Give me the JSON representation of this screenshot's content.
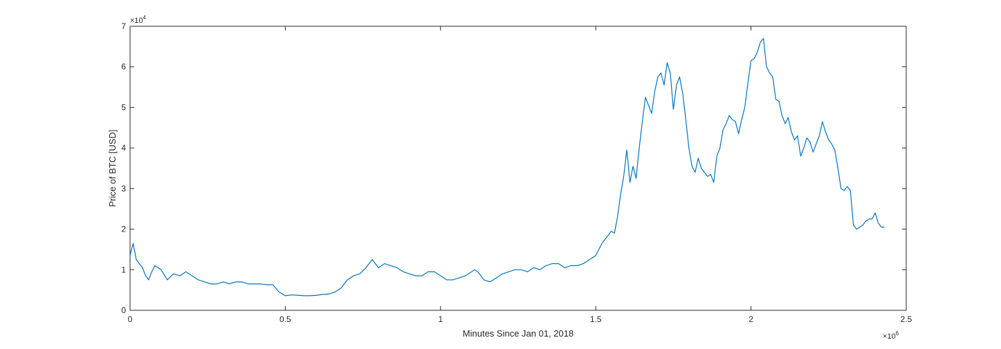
{
  "chart_data": {
    "type": "line",
    "title": "",
    "xlabel": "Minutes Since Jan 01, 2018",
    "ylabel": "Price of BTC [USD]",
    "x_exponent_label": "×10",
    "x_exponent_power": "6",
    "y_exponent_label": "×10",
    "y_exponent_power": "4",
    "xlim": [
      0,
      2500000
    ],
    "ylim": [
      0,
      70000
    ],
    "x_ticks": [
      0,
      500000,
      1000000,
      1500000,
      2000000,
      2500000
    ],
    "x_tick_labels": [
      "0",
      "0.5",
      "1",
      "1.5",
      "2",
      "2.5"
    ],
    "y_ticks": [
      0,
      10000,
      20000,
      30000,
      40000,
      50000,
      60000,
      70000
    ],
    "y_tick_labels": [
      "0",
      "1",
      "2",
      "3",
      "4",
      "5",
      "6",
      "7"
    ],
    "grid": false,
    "line_color": "#0072bd",
    "series": [
      {
        "x": [
          0,
          10000,
          20000,
          30000,
          40000,
          50000,
          60000,
          70000,
          80000,
          100000,
          120000,
          140000,
          160000,
          180000,
          200000,
          220000,
          240000,
          260000,
          280000,
          300000,
          320000,
          340000,
          360000,
          380000,
          400000,
          420000,
          440000,
          460000,
          480000,
          500000,
          520000,
          540000,
          560000,
          580000,
          600000,
          620000,
          640000,
          660000,
          680000,
          700000,
          720000,
          740000,
          760000,
          780000,
          800000,
          820000,
          840000,
          860000,
          880000,
          900000,
          920000,
          940000,
          960000,
          980000,
          1000000,
          1020000,
          1040000,
          1060000,
          1080000,
          1100000,
          1110000,
          1120000,
          1140000,
          1160000,
          1180000,
          1200000,
          1220000,
          1240000,
          1260000,
          1280000,
          1300000,
          1320000,
          1340000,
          1360000,
          1380000,
          1400000,
          1420000,
          1440000,
          1460000,
          1480000,
          1500000,
          1520000,
          1540000,
          1550000,
          1560000,
          1570000,
          1580000,
          1590000,
          1600000,
          1610000,
          1620000,
          1630000,
          1640000,
          1650000,
          1660000,
          1670000,
          1680000,
          1690000,
          1700000,
          1710000,
          1720000,
          1730000,
          1740000,
          1750000,
          1760000,
          1770000,
          1780000,
          1790000,
          1800000,
          1810000,
          1820000,
          1830000,
          1840000,
          1850000,
          1860000,
          1870000,
          1880000,
          1890000,
          1900000,
          1910000,
          1920000,
          1930000,
          1940000,
          1950000,
          1960000,
          1970000,
          1980000,
          1990000,
          2000000,
          2010000,
          2020000,
          2030000,
          2040000,
          2050000,
          2060000,
          2070000,
          2080000,
          2090000,
          2100000,
          2110000,
          2120000,
          2130000,
          2140000,
          2150000,
          2160000,
          2170000,
          2180000,
          2190000,
          2200000,
          2210000,
          2220000,
          2230000,
          2240000,
          2250000,
          2260000,
          2270000,
          2280000,
          2290000,
          2300000,
          2310000,
          2320000,
          2330000,
          2340000,
          2350000,
          2360000,
          2370000,
          2380000,
          2390000,
          2400000,
          2410000,
          2420000,
          2430000
        ],
        "y": [
          13500,
          16500,
          12500,
          11500,
          10500,
          8500,
          7500,
          9500,
          11000,
          10000,
          7500,
          9000,
          8500,
          9500,
          8500,
          7500,
          7000,
          6500,
          6500,
          7000,
          6500,
          7000,
          7000,
          6500,
          6500,
          6500,
          6300,
          6300,
          4500,
          3600,
          3800,
          3700,
          3600,
          3600,
          3700,
          3900,
          4000,
          4500,
          5500,
          7500,
          8500,
          9000,
          10500,
          12500,
          10500,
          11500,
          11000,
          10500,
          9500,
          9000,
          8500,
          8500,
          9500,
          9500,
          8500,
          7500,
          7500,
          8000,
          8500,
          9500,
          10000,
          9500,
          7500,
          7000,
          8000,
          9000,
          9500,
          10000,
          10000,
          9500,
          10500,
          10000,
          11000,
          11500,
          11500,
          10500,
          11000,
          11000,
          11500,
          12500,
          13500,
          16500,
          18500,
          19500,
          19000,
          23000,
          28500,
          33000,
          39500,
          31500,
          35500,
          32500,
          40000,
          46500,
          52500,
          50500,
          48500,
          54000,
          57500,
          58500,
          55500,
          61000,
          58500,
          49500,
          55500,
          57500,
          53500,
          47000,
          40000,
          35500,
          34000,
          37500,
          35000,
          34000,
          33000,
          33500,
          31500,
          38000,
          40000,
          44500,
          46000,
          48000,
          47000,
          46500,
          43500,
          47000,
          50000,
          56000,
          61500,
          62000,
          63500,
          66000,
          67000,
          60000,
          58500,
          57500,
          52000,
          51500,
          48000,
          46000,
          47500,
          44000,
          42000,
          43000,
          38000,
          40000,
          42500,
          41500,
          39000,
          41000,
          43000,
          46500,
          44000,
          42000,
          41000,
          39500,
          35000,
          30000,
          29500,
          30500,
          29500,
          21000,
          20000,
          20500,
          21000,
          22000,
          22500,
          22500,
          24000,
          21500,
          20500,
          20500
        ]
      }
    ]
  }
}
